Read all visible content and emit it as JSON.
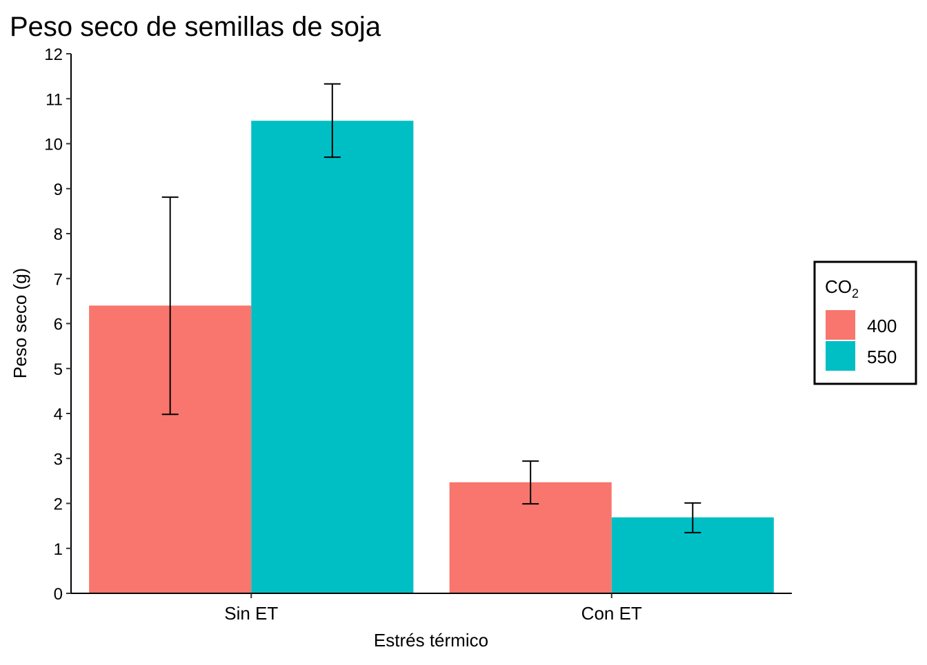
{
  "chart_data": {
    "type": "bar",
    "title": "Peso seco de semillas de soja",
    "xlabel": "Estrés térmico",
    "ylabel": "Peso seco (g)",
    "ylim": [
      0,
      12
    ],
    "yticks": [
      "0",
      "1",
      "2",
      "3",
      "4",
      "5",
      "6",
      "7",
      "8",
      "9",
      "10",
      "11",
      "12"
    ],
    "categories": [
      "Sin ET",
      "Con ET"
    ],
    "legend": {
      "title_main": "CO",
      "title_sub": "2",
      "placement": "right"
    },
    "series": [
      {
        "name": "400",
        "color": "#F8766D",
        "values": [
          6.4,
          2.47
        ],
        "error_low": [
          3.98,
          1.99
        ],
        "error_high": [
          8.81,
          2.94
        ]
      },
      {
        "name": "550",
        "color": "#00BFC4",
        "values": [
          10.51,
          1.69
        ],
        "error_low": [
          9.7,
          1.35
        ],
        "error_high": [
          11.33,
          2.01
        ]
      }
    ],
    "grid": false
  }
}
